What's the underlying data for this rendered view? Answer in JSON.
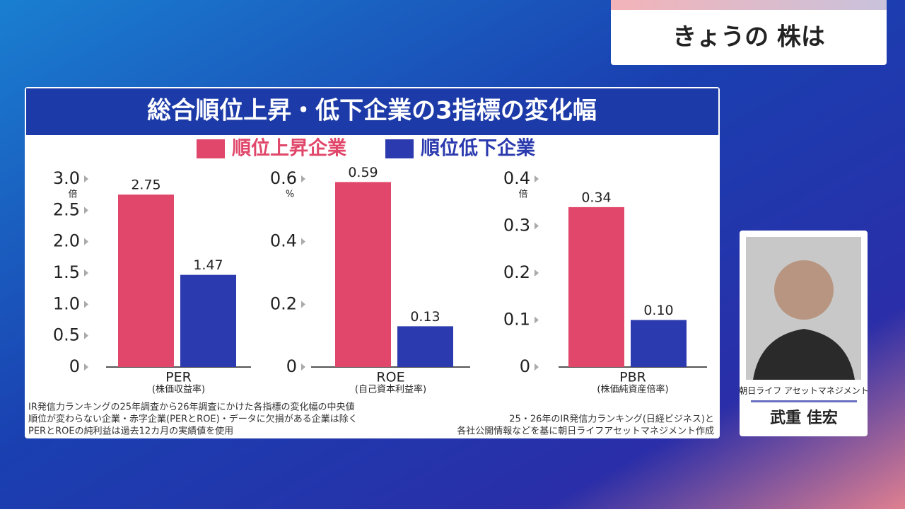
{
  "header_tag": "きょうの 株は",
  "panel_title": "総合順位上昇・低下企業の3指標の変化幅",
  "chart_data": [
    {
      "type": "bar",
      "xlabel": "PER",
      "xlabel_sub": "(株価収益率)",
      "unit": "倍",
      "series": [
        {
          "name": "順位上昇企業",
          "color": "#e0476a",
          "values": [
            2.75
          ]
        },
        {
          "name": "順位低下企業",
          "color": "#2b3aae",
          "values": [
            1.47
          ]
        }
      ],
      "ylim": [
        0,
        3
      ],
      "yticks": [
        0,
        0.5,
        {
          "value": 1,
          "label": "1.0"
        },
        1.5,
        {
          "value": 2,
          "label": "2.0"
        },
        2.5,
        {
          "value": 3,
          "label": "3.0"
        }
      ]
    },
    {
      "type": "bar",
      "xlabel": "ROE",
      "xlabel_sub": "(自己資本利益率)",
      "unit": "%",
      "series": [
        {
          "color": "#e0476a",
          "values": [
            0.59
          ]
        },
        {
          "color": "#2b3aae",
          "values": [
            0.13
          ]
        }
      ],
      "ylim": [
        0,
        0.6
      ],
      "yticks": [
        0,
        0.2,
        0.4,
        0.6
      ]
    },
    {
      "type": "bar",
      "xlabel": "PBR",
      "xlabel_sub": "(株価純資産倍率)",
      "unit": "倍",
      "series": [
        {
          "color": "#e0476a",
          "values": [
            0.34
          ]
        },
        {
          "color": "#2b3aae",
          "values": [
            0.1
          ],
          "value_labels": [
            "0.10"
          ]
        }
      ],
      "ylim": [
        0,
        0.4
      ],
      "yticks": [
        0,
        0.1,
        0.2,
        0.3,
        0.4
      ]
    }
  ],
  "notes": [
    "IR発信力ランキングの25年調査から26年調査にかけた各指標の変化幅の中央値",
    "順位が変わらない企業・赤字企業(PERとROE)・データに欠損がある企業は除く",
    "PERとROEの純利益は過去12カ月の実績値を使用"
  ],
  "source": [
    "25・26年のIR発信力ランキング(日経ビジネス)と",
    "各社公開情報などを基に朝日ライフアセットマネジメント作成"
  ],
  "presenter": {
    "company": "朝日ライフ アセットマネジメント",
    "name": "武重 佳宏"
  }
}
